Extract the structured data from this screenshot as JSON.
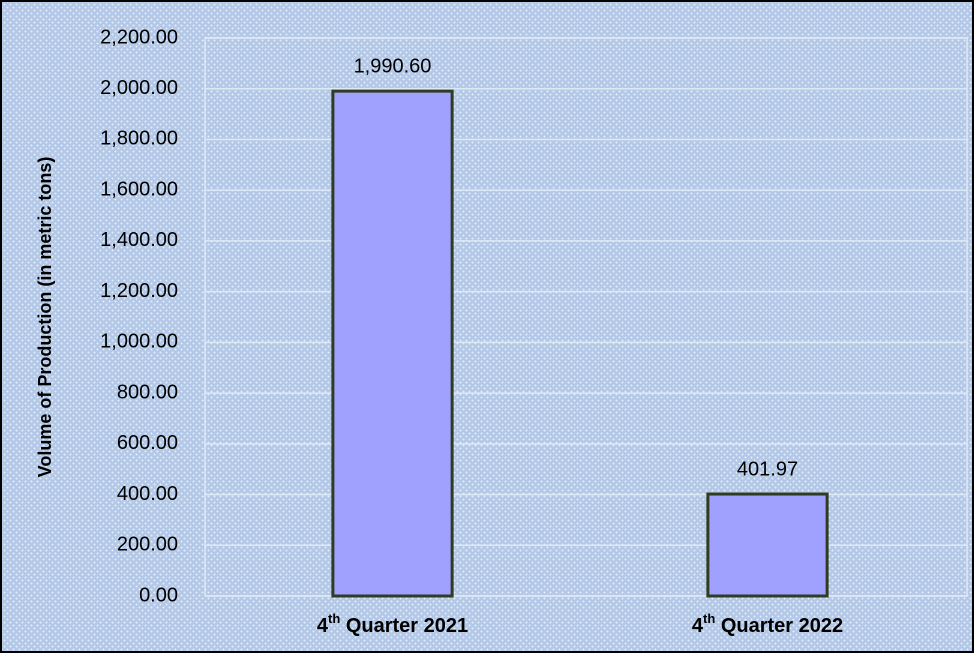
{
  "chart_data": {
    "type": "bar",
    "y_label": "Volume of Production (in metric tons)",
    "categories": [
      "4th Quarter 2021",
      "4th Quarter 2022"
    ],
    "values": [
      1990.6,
      401.97
    ],
    "value_labels": [
      "1,990.60",
      "401.97"
    ],
    "color": "#a0a0ff",
    "ylim": [
      0,
      2200
    ],
    "yticks": [
      {
        "value": 0,
        "label": "0.00"
      },
      {
        "value": 200,
        "label": "200.00"
      },
      {
        "value": 400,
        "label": "400.00"
      },
      {
        "value": 600,
        "label": "600.00"
      },
      {
        "value": 800,
        "label": "800.00"
      },
      {
        "value": 1000,
        "label": "1,000.00"
      },
      {
        "value": 1200,
        "label": "1,200.00"
      },
      {
        "value": 1400,
        "label": "1,400.00"
      },
      {
        "value": 1600,
        "label": "1,600.00"
      },
      {
        "value": 1800,
        "label": "1,800.00"
      },
      {
        "value": 2000,
        "label": "2,000.00"
      },
      {
        "value": 2200,
        "label": "2,200.00"
      }
    ],
    "grid": true
  }
}
